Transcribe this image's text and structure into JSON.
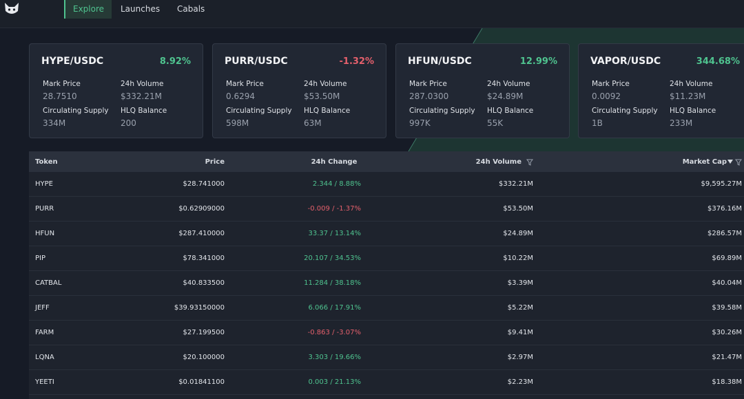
{
  "nav": {
    "items": [
      "Explore",
      "Launches",
      "Cabals"
    ]
  },
  "cards": [
    {
      "pair": "HYPE/USDC",
      "change": "8.92%",
      "fields": [
        {
          "label": "Mark Price",
          "value": "28.7510"
        },
        {
          "label": "24h Volume",
          "value": "$332.21M"
        },
        {
          "label": "Circulating Supply",
          "value": "334M"
        },
        {
          "label": "HLQ Balance",
          "value": "200"
        }
      ]
    },
    {
      "pair": "PURR/USDC",
      "change": "-1.32%",
      "fields": [
        {
          "label": "Mark Price",
          "value": "0.6294"
        },
        {
          "label": "24h Volume",
          "value": "$53.50M"
        },
        {
          "label": "Circulating Supply",
          "value": "598M"
        },
        {
          "label": "HLQ Balance",
          "value": "63M"
        }
      ]
    },
    {
      "pair": "HFUN/USDC",
      "change": "12.99%",
      "fields": [
        {
          "label": "Mark Price",
          "value": "287.0300"
        },
        {
          "label": "24h Volume",
          "value": "$24.89M"
        },
        {
          "label": "Circulating Supply",
          "value": "997K"
        },
        {
          "label": "HLQ Balance",
          "value": "55K"
        }
      ]
    },
    {
      "pair": "VAPOR/USDC",
      "change": "344.68%",
      "fields": [
        {
          "label": "Mark Price",
          "value": "0.0092"
        },
        {
          "label": "24h Volume",
          "value": "$11.23M"
        },
        {
          "label": "Circulating Supply",
          "value": "1B"
        },
        {
          "label": "HLQ Balance",
          "value": "233M"
        }
      ]
    }
  ],
  "table": {
    "headers": [
      "Token",
      "Price",
      "24h Change",
      "24h Volume",
      "Market Cap"
    ],
    "rows": [
      [
        "HYPE",
        "$28.741000",
        "2.344 / 8.88%",
        "$332.21M",
        "$9,595.27M"
      ],
      [
        "PURR",
        "$0.62909000",
        "-0.009 / -1.37%",
        "$53.50M",
        "$376.16M"
      ],
      [
        "HFUN",
        "$287.410000",
        "33.37 / 13.14%",
        "$24.89M",
        "$286.57M"
      ],
      [
        "PIP",
        "$78.341000",
        "20.107 / 34.53%",
        "$10.22M",
        "$69.89M"
      ],
      [
        "CATBAL",
        "$40.833500",
        "11.284 / 38.18%",
        "$3.39M",
        "$40.04M"
      ],
      [
        "JEFF",
        "$39.93150000",
        "6.066 / 17.91%",
        "$5.22M",
        "$39.58M"
      ],
      [
        "FARM",
        "$27.199500",
        "-0.863 / -3.07%",
        "$9.41M",
        "$30.26M"
      ],
      [
        "LQNA",
        "$20.100000",
        "3.303 / 19.66%",
        "$2.97M",
        "$21.47M"
      ],
      [
        "YEETI",
        "$0.01841100",
        "0.003 / 21.13%",
        "$2.23M",
        "$18.38M"
      ]
    ]
  }
}
